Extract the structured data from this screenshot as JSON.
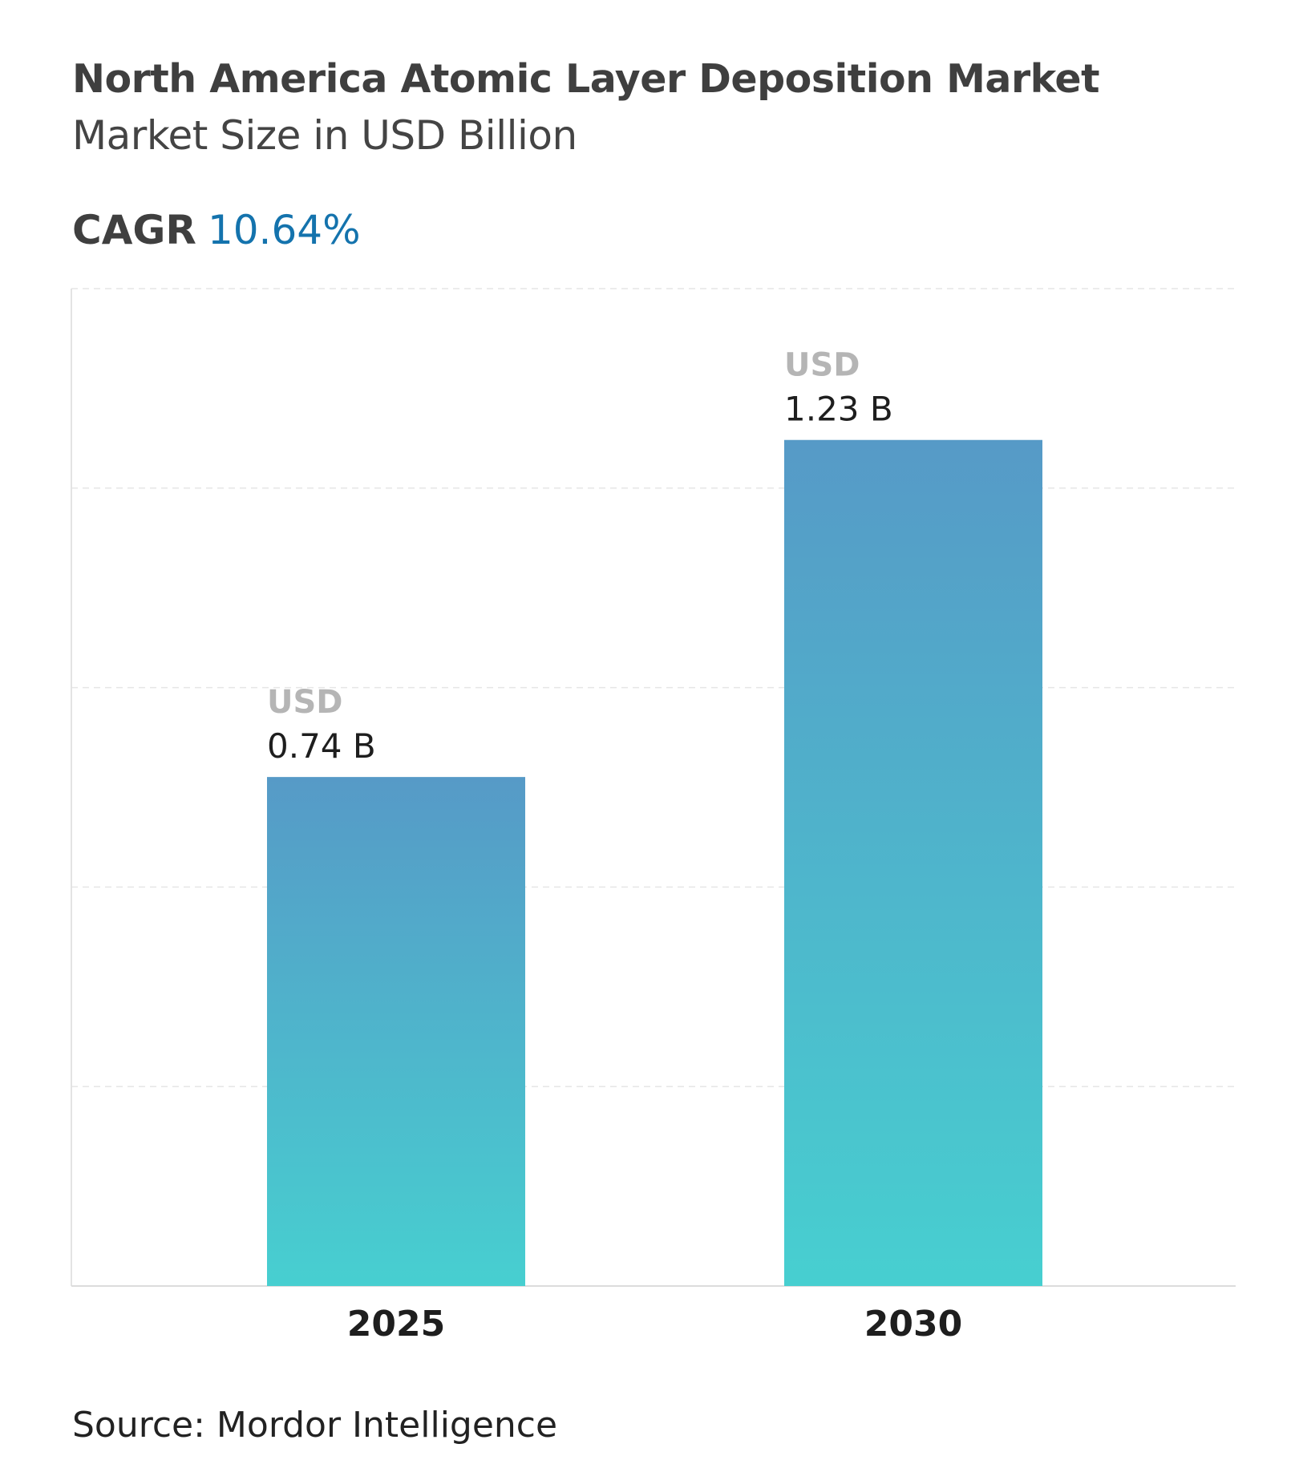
{
  "header": {
    "title": "North America Atomic Layer Deposition Market",
    "subtitle": "Market Size in USD Billion",
    "cagr_label": "CAGR",
    "cagr_value": "10.64%"
  },
  "source": "Source: Mordor Intelligence",
  "colors": {
    "bar_top": "#569ac7",
    "bar_bottom": "#47cfd0",
    "cagr": "#1473ad"
  },
  "chart_data": {
    "type": "bar",
    "title": "North America Atomic Layer Deposition Market",
    "subtitle": "Market Size in USD Billion",
    "categories": [
      "2025",
      "2030"
    ],
    "values": [
      0.74,
      1.23
    ],
    "value_prefix_labels": [
      "USD",
      "USD"
    ],
    "value_labels": [
      "0.74 B",
      "1.23 B"
    ],
    "xlabel": "",
    "ylabel": "",
    "ylim": [
      0,
      1.45
    ],
    "grid": true,
    "y_axis_ticks_shown": false,
    "legend": "none"
  }
}
